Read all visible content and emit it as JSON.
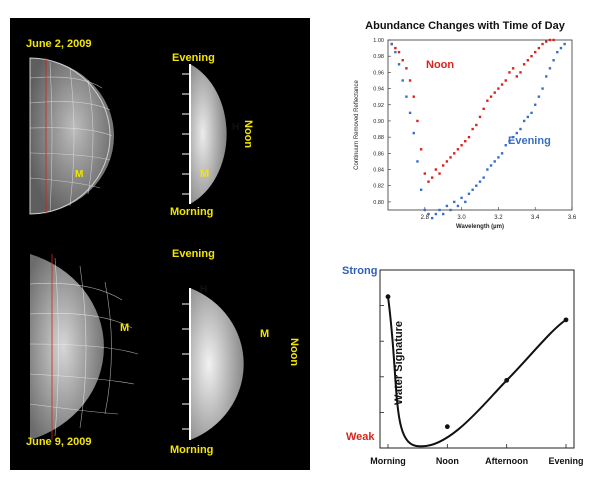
{
  "lunar_images": {
    "top_date": "June 2, 2009",
    "bottom_date": "June 9, 2009",
    "top_evening": "Evening",
    "top_morning": "Morning",
    "top_noon": "Noon",
    "bottom_evening": "Evening",
    "bottom_morning": "Morning",
    "bottom_noon": "Noon",
    "marker_m": "M",
    "marker_h": "H"
  },
  "chart_data": [
    {
      "type": "scatter",
      "title": "Abundance Changes with Time of Day",
      "xlabel": "Wavelength (µm)",
      "ylabel": "Continuum Removed Reflectance",
      "xlim": [
        2.6,
        3.6
      ],
      "ylim": [
        0.79,
        1.0
      ],
      "xticks": [
        "2.8",
        "3.0",
        "3.2",
        "3.4",
        "3.6"
      ],
      "yticks": [
        "1.00",
        "0.98",
        "0.96",
        "0.94",
        "0.92",
        "0.90",
        "0.88",
        "0.86",
        "0.84",
        "0.82",
        "0.80"
      ],
      "series": [
        {
          "name": "Noon",
          "color": "#d8241c",
          "x": [
            2.62,
            2.64,
            2.66,
            2.68,
            2.7,
            2.72,
            2.74,
            2.76,
            2.78,
            2.8,
            2.82,
            2.84,
            2.86,
            2.88,
            2.9,
            2.92,
            2.94,
            2.96,
            2.98,
            3.0,
            3.02,
            3.04,
            3.06,
            3.08,
            3.1,
            3.12,
            3.14,
            3.16,
            3.18,
            3.2,
            3.22,
            3.24,
            3.26,
            3.28,
            3.3,
            3.32,
            3.34,
            3.36,
            3.38,
            3.4,
            3.42,
            3.44,
            3.46,
            3.48,
            3.5
          ],
          "y": [
            0.995,
            0.99,
            0.985,
            0.975,
            0.965,
            0.95,
            0.93,
            0.9,
            0.865,
            0.835,
            0.825,
            0.83,
            0.84,
            0.835,
            0.845,
            0.85,
            0.855,
            0.86,
            0.865,
            0.87,
            0.875,
            0.88,
            0.89,
            0.895,
            0.905,
            0.915,
            0.925,
            0.93,
            0.935,
            0.94,
            0.945,
            0.95,
            0.96,
            0.965,
            0.955,
            0.96,
            0.97,
            0.975,
            0.98,
            0.985,
            0.99,
            0.995,
            0.998,
            1.0,
            1.0
          ]
        },
        {
          "name": "Evening",
          "color": "#3a6fc4",
          "x": [
            2.62,
            2.64,
            2.66,
            2.68,
            2.7,
            2.72,
            2.74,
            2.76,
            2.78,
            2.8,
            2.82,
            2.84,
            2.86,
            2.88,
            2.9,
            2.92,
            2.94,
            2.96,
            2.98,
            3.0,
            3.02,
            3.04,
            3.06,
            3.08,
            3.1,
            3.12,
            3.14,
            3.16,
            3.18,
            3.2,
            3.22,
            3.24,
            3.26,
            3.28,
            3.3,
            3.32,
            3.34,
            3.36,
            3.38,
            3.4,
            3.42,
            3.44,
            3.46,
            3.48,
            3.5,
            3.52,
            3.54,
            3.56
          ],
          "y": [
            0.995,
            0.985,
            0.97,
            0.95,
            0.93,
            0.91,
            0.885,
            0.85,
            0.815,
            0.79,
            0.785,
            0.78,
            0.785,
            0.79,
            0.785,
            0.795,
            0.79,
            0.8,
            0.795,
            0.805,
            0.8,
            0.81,
            0.815,
            0.82,
            0.825,
            0.83,
            0.84,
            0.845,
            0.85,
            0.855,
            0.86,
            0.87,
            0.875,
            0.88,
            0.885,
            0.89,
            0.9,
            0.905,
            0.91,
            0.92,
            0.93,
            0.94,
            0.955,
            0.965,
            0.975,
            0.985,
            0.99,
            0.995
          ]
        }
      ]
    },
    {
      "type": "line",
      "xlabel": "",
      "ylabel": "Water Signature",
      "categories": [
        "Morning",
        "Noon",
        "Afternoon",
        "Evening"
      ],
      "y_top_label": "Strong",
      "y_bottom_label": "Weak",
      "ylim": [
        0,
        1
      ],
      "series": [
        {
          "values": [
            0.85,
            0.12,
            0.38,
            0.72
          ]
        }
      ]
    }
  ],
  "colors": {
    "panel_background": "#000000",
    "label_yellow": "#f2e600",
    "strong_label": "#2f5fb7",
    "weak_label": "#d8241c"
  }
}
